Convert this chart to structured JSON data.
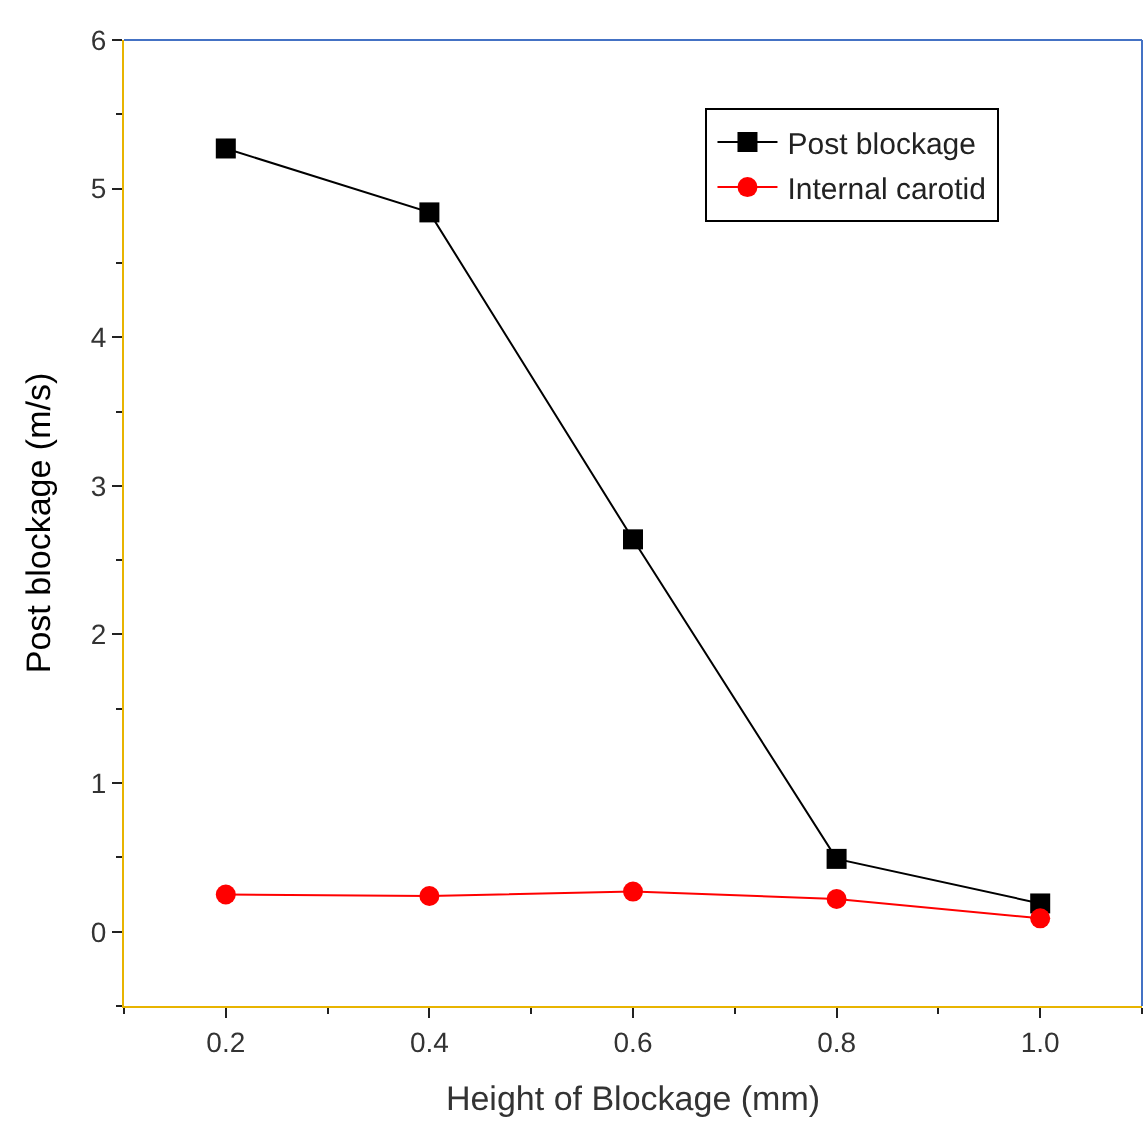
{
  "chart_data": {
    "type": "line",
    "xlabel": "Height of Blockage (mm)",
    "ylabel": "Post blockage (m/s)",
    "x": [
      0.2,
      0.4,
      0.6,
      0.8,
      1.0
    ],
    "series": [
      {
        "name": "Post blockage",
        "color": "#000000",
        "marker": "square",
        "values": [
          5.27,
          4.84,
          2.64,
          0.49,
          0.19
        ]
      },
      {
        "name": "Internal carotid",
        "color": "#ff0000",
        "marker": "circle",
        "values": [
          0.25,
          0.24,
          0.27,
          0.22,
          0.09
        ]
      }
    ],
    "xlim": [
      0.1,
      1.1
    ],
    "xticks": [
      {
        "value": 0.2,
        "label": "0.2"
      },
      {
        "value": 0.4,
        "label": "0.4"
      },
      {
        "value": 0.6,
        "label": "0.6"
      },
      {
        "value": 0.8,
        "label": "0.8"
      },
      {
        "value": 1.0,
        "label": "1.0"
      }
    ],
    "ylim": [
      -0.5,
      6
    ],
    "yticks": [
      0,
      1,
      2,
      3,
      4,
      5,
      6
    ],
    "legend": "top right",
    "line_style": "solid"
  }
}
